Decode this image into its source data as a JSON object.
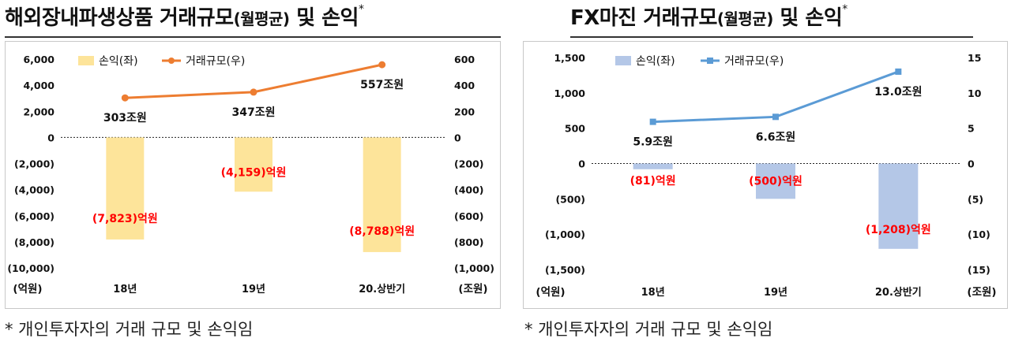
{
  "titles": {
    "left": {
      "main": "해외장내파생상품 거래규모",
      "paren": "(월평균)",
      "tail": " 및 손익",
      "mark": "*"
    },
    "right": {
      "main": "FX마진 거래규모",
      "paren": "(월평균)",
      "tail": " 및 손익",
      "mark": "*"
    }
  },
  "notes": {
    "left": "* 개인투자자의 거래 규모 및 손익임",
    "right": "* 개인투자자의 거래 규모 및 손익임"
  },
  "colors": {
    "left_bar": "#fde49a",
    "right_bar": "#b4c7e7",
    "left_line": "#ed7d31",
    "right_line": "#5b9bd5",
    "loss_label": "#ff0000",
    "text": "#111111"
  },
  "chart_data": [
    {
      "type": "bar+line",
      "categories": [
        "18년",
        "19년",
        "20.상반기"
      ],
      "series": [
        {
          "name": "손익(좌)",
          "type": "bar",
          "axis": "left",
          "values": [
            -7823,
            -4159,
            -8788
          ],
          "labels": [
            "(7,823)억원",
            "(4,159)억원",
            "(8,788)억원"
          ]
        },
        {
          "name": "거래규모(우)",
          "type": "line",
          "axis": "right",
          "values": [
            303,
            347,
            557
          ],
          "labels": [
            "303조원",
            "347조원",
            "557조원"
          ]
        }
      ],
      "left_axis": {
        "unit": "(억원)",
        "ylim": [
          -10000,
          6000
        ],
        "ticks": [
          6000,
          4000,
          2000,
          0,
          -2000,
          -4000,
          -6000,
          -8000,
          -10000
        ],
        "tick_labels": [
          "6,000",
          "4,000",
          "2,000",
          "0",
          "(2,000)",
          "(4,000)",
          "(6,000)",
          "(8,000)",
          "(10,000)"
        ]
      },
      "right_axis": {
        "unit": "(조원)",
        "ylim": [
          -1000,
          600
        ],
        "ticks": [
          600,
          400,
          200,
          0,
          -200,
          -400,
          -600,
          -800,
          -1000
        ],
        "tick_labels": [
          "600",
          "400",
          "200",
          "0",
          "(200)",
          "(400)",
          "(600)",
          "(800)",
          "(1,000)"
        ]
      },
      "legend_position": "top-left"
    },
    {
      "type": "bar+line",
      "categories": [
        "18년",
        "19년",
        "20.상반기"
      ],
      "series": [
        {
          "name": "손익(좌)",
          "type": "bar",
          "axis": "left",
          "values": [
            -81,
            -500,
            -1208
          ],
          "labels": [
            "(81)억원",
            "(500)억원",
            "(1,208)억원"
          ]
        },
        {
          "name": "거래규모(우)",
          "type": "line",
          "axis": "right",
          "values": [
            5.9,
            6.6,
            13.0
          ],
          "labels": [
            "5.9조원",
            "6.6조원",
            "13.0조원"
          ]
        }
      ],
      "left_axis": {
        "unit": "(억원)",
        "ylim": [
          -1500,
          1500
        ],
        "ticks": [
          1500,
          1000,
          500,
          0,
          -500,
          -1000,
          -1500
        ],
        "tick_labels": [
          "1,500",
          "1,000",
          "500",
          "0",
          "(500)",
          "(1,000)",
          "(1,500)"
        ]
      },
      "right_axis": {
        "unit": "(조원)",
        "ylim": [
          -15,
          15
        ],
        "ticks": [
          15,
          10,
          5,
          0,
          -5,
          -10,
          -15
        ],
        "tick_labels": [
          "15",
          "10",
          "5",
          "0",
          "(5)",
          "(10)",
          "(15)"
        ]
      },
      "legend_position": "top-left"
    }
  ]
}
